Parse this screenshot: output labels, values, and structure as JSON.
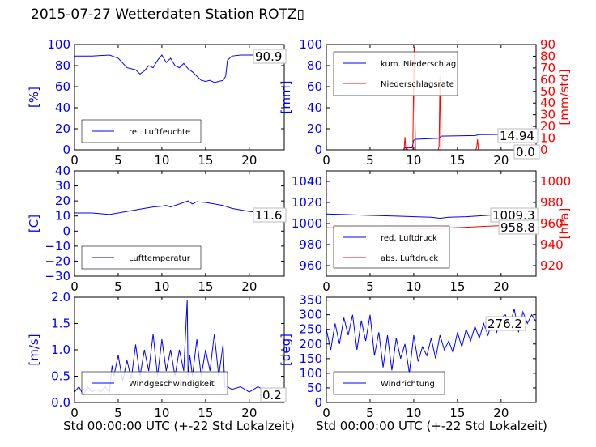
{
  "title": "2015-07-27 Wetterdaten Station ROTZ▯",
  "xlabel_left": "Std 00:00:00 UTC (+-22 Std Lokalzeit)",
  "xlabel_right": "Std 00:00:00 UTC (+-22 Std Lokalzeit)",
  "colors": {
    "primary": "#0000ff",
    "secondary": "#ff0000",
    "axis": "#000000"
  },
  "chart_data": [
    {
      "type": "line",
      "panel": "top-left",
      "xlim": [
        0,
        24
      ],
      "ylim": [
        0,
        100
      ],
      "xticks": [
        "0",
        "5",
        "10",
        "15",
        "20"
      ],
      "yticks": [
        "0",
        "20",
        "40",
        "60",
        "80",
        "100"
      ],
      "ylabel": "[%]",
      "legend_placement": "lower-left",
      "series": [
        {
          "name": "rel. Luftfeuchte",
          "color": "#0000ff",
          "x": [
            0,
            2,
            4,
            5,
            6,
            6.5,
            7,
            7.5,
            8,
            8.5,
            9,
            9.5,
            10,
            10.5,
            11,
            11.5,
            12,
            12.5,
            13,
            13.5,
            14,
            14.5,
            15,
            15.5,
            16,
            16.5,
            17,
            17.3,
            17.5,
            18,
            19,
            20,
            21,
            22,
            23,
            24
          ],
          "y": [
            89,
            89,
            90,
            87,
            78,
            77,
            76,
            72,
            75,
            80,
            78,
            85,
            90,
            83,
            87,
            80,
            78,
            82,
            77,
            74,
            70,
            66,
            65,
            66,
            64,
            65,
            66,
            70,
            85,
            89,
            90,
            90,
            90,
            91,
            90.5,
            90.9
          ]
        }
      ],
      "last_value": "90.9"
    },
    {
      "type": "line",
      "panel": "top-right",
      "xlim": [
        0,
        24
      ],
      "ylim": [
        0,
        100
      ],
      "y2lim": [
        0,
        90
      ],
      "xticks": [
        "0",
        "5",
        "10",
        "15",
        "20"
      ],
      "yticks": [
        "0",
        "20",
        "40",
        "60",
        "80",
        "100"
      ],
      "y2ticks": [
        "0",
        "10",
        "20",
        "30",
        "40",
        "50",
        "60",
        "70",
        "80",
        "90"
      ],
      "ylabel": "[mm]",
      "y2label": "[mm/std]",
      "legend_placement": "upper-left",
      "series": [
        {
          "name": "kum. Niederschlag",
          "color": "#0000ff",
          "axis": "left",
          "x": [
            0,
            8.8,
            9,
            9.8,
            10,
            10.2,
            12.9,
            13,
            13.1,
            17,
            17.3,
            17.5,
            24
          ],
          "y": [
            0,
            0,
            2,
            2,
            9,
            10,
            11,
            12,
            13,
            13.5,
            14,
            14.5,
            14.94
          ]
        },
        {
          "name": "Niederschlagsrate",
          "color": "#ff0000",
          "axis": "right",
          "x": [
            0,
            8.9,
            9.0,
            9.1,
            9.2,
            9.3,
            9.9,
            10.0,
            10.05,
            10.1,
            10.2,
            10.3,
            12.8,
            12.9,
            13.0,
            13.05,
            13.1,
            13.2,
            17.1,
            17.2,
            17.3,
            17.4,
            24
          ],
          "y": [
            0,
            0,
            11,
            0,
            2,
            0,
            0,
            72,
            88,
            48,
            0,
            0,
            0,
            3,
            63,
            36,
            0,
            0,
            0,
            2,
            9,
            0,
            0
          ]
        }
      ],
      "last_values": [
        "14.94",
        "0.0"
      ]
    },
    {
      "type": "line",
      "panel": "middle-left",
      "xlim": [
        0,
        24
      ],
      "ylim": [
        -30,
        40
      ],
      "xticks": [
        "0",
        "5",
        "10",
        "15",
        "20"
      ],
      "yticks": [
        "−30",
        "−20",
        "−10",
        "0",
        "10",
        "20",
        "30",
        "40"
      ],
      "ylabel": "[C]",
      "legend_placement": "lower-left",
      "series": [
        {
          "name": "Lufttemperatur",
          "color": "#0000ff",
          "x": [
            0,
            2,
            3,
            4,
            5,
            6,
            7,
            8,
            9,
            10,
            10.5,
            11,
            12,
            12.5,
            13,
            13.5,
            14,
            15,
            16,
            17,
            18,
            19,
            20,
            21,
            22,
            23,
            24
          ],
          "y": [
            12,
            12,
            11.5,
            11,
            12,
            13,
            14,
            15,
            16,
            16.5,
            17,
            16,
            18,
            19,
            20,
            18,
            19.5,
            19,
            18,
            17,
            15,
            14,
            13,
            12.5,
            12,
            11.8,
            11.6
          ]
        }
      ],
      "last_value": "11.6"
    },
    {
      "type": "line",
      "panel": "middle-right",
      "xlim": [
        0,
        24
      ],
      "ylim": [
        950,
        1050
      ],
      "y2lim": [
        910,
        1010
      ],
      "xticks": [
        "0",
        "5",
        "10",
        "15",
        "20"
      ],
      "yticks": [
        "960",
        "980",
        "1000",
        "1020",
        "1040"
      ],
      "y2ticks": [
        "920",
        "940",
        "960",
        "980",
        "1000"
      ],
      "ylabel": "",
      "y2label": "[hPa]",
      "legend_placement": "lower-left",
      "series": [
        {
          "name": "red. Luftdruck",
          "color": "#0000ff",
          "axis": "left",
          "x": [
            0,
            2,
            4,
            6,
            8,
            10,
            12,
            13,
            14,
            16,
            18,
            20,
            22,
            24
          ],
          "y": [
            1009,
            1008.5,
            1008,
            1007.5,
            1007,
            1006.5,
            1006,
            1005,
            1006,
            1006.5,
            1007.5,
            1008.5,
            1009,
            1009.3
          ]
        },
        {
          "name": "abs. Luftdruck",
          "color": "#ff0000",
          "axis": "right",
          "x": [
            0,
            2,
            4,
            6,
            8,
            10,
            12,
            13,
            14,
            16,
            18,
            20,
            22,
            24
          ],
          "y": [
            956,
            956,
            955.8,
            955.6,
            955.5,
            955.4,
            955.3,
            955.2,
            955.8,
            956.5,
            957.3,
            958,
            958.5,
            958.8
          ]
        }
      ],
      "last_values": [
        "1009.3",
        "958.8"
      ]
    },
    {
      "type": "line",
      "panel": "bottom-left",
      "xlim": [
        0,
        24
      ],
      "ylim": [
        0,
        2
      ],
      "xticks": [
        "0",
        "5",
        "10",
        "15",
        "20"
      ],
      "yticks": [
        "0.0",
        "0.5",
        "1.0",
        "1.5",
        "2.0"
      ],
      "ylabel": "[m/s]",
      "legend_placement": "lower-left",
      "series": [
        {
          "name": "Windgeschwindigkeit",
          "color": "#0000ff",
          "x": [
            0,
            0.5,
            1,
            1.5,
            2,
            2.5,
            3,
            3.5,
            4,
            4.3,
            4.5,
            5,
            5.5,
            6,
            6.5,
            7,
            7.5,
            8,
            8.5,
            9,
            9.5,
            10,
            10.5,
            11,
            11.5,
            12,
            12.5,
            12.9,
            13,
            13.2,
            13.5,
            14,
            14.5,
            15,
            15.5,
            16,
            16.5,
            17,
            17.2,
            17.5,
            18,
            19,
            20,
            21,
            22,
            23,
            24
          ],
          "y": [
            0.2,
            0.3,
            0.15,
            0.3,
            0.2,
            0.25,
            0.2,
            0.3,
            0.2,
            0.7,
            0.5,
            0.9,
            0.4,
            0.8,
            0.45,
            1.1,
            0.5,
            1.0,
            0.6,
            1.3,
            0.5,
            1.2,
            0.6,
            1.0,
            0.5,
            1.0,
            0.6,
            1.95,
            0.5,
            0.9,
            0.5,
            1.2,
            0.5,
            1.0,
            0.6,
            1.3,
            0.5,
            1.1,
            0.3,
            0.3,
            0.25,
            0.3,
            0.2,
            0.3,
            0.2,
            0.25,
            0.2
          ]
        }
      ],
      "last_value": "0.2"
    },
    {
      "type": "line",
      "panel": "bottom-right",
      "xlim": [
        0,
        24
      ],
      "ylim": [
        0,
        360
      ],
      "xticks": [
        "0",
        "5",
        "10",
        "15",
        "20"
      ],
      "yticks": [
        "0",
        "50",
        "100",
        "150",
        "200",
        "250",
        "300",
        "350"
      ],
      "ylabel": "[deg]",
      "legend_placement": "lower-left",
      "series": [
        {
          "name": "Windrichtung",
          "color": "#0000ff",
          "x": [
            0,
            0.5,
            1,
            1.5,
            2,
            2.5,
            3,
            3.5,
            4,
            4.5,
            5,
            5.5,
            6,
            6.5,
            7,
            7.5,
            8,
            8.5,
            9,
            9.5,
            10,
            10.5,
            11,
            11.5,
            12,
            12.5,
            13,
            13.5,
            14,
            14.5,
            15,
            15.5,
            16,
            16.5,
            17,
            17.5,
            18,
            18.5,
            19,
            19.5,
            20,
            20.5,
            21,
            21.5,
            22,
            22.5,
            23,
            23.5,
            24
          ],
          "y": [
            250,
            180,
            270,
            200,
            290,
            230,
            300,
            180,
            280,
            210,
            300,
            160,
            240,
            120,
            230,
            110,
            220,
            150,
            200,
            100,
            230,
            140,
            190,
            160,
            220,
            150,
            230,
            180,
            210,
            170,
            240,
            190,
            250,
            210,
            260,
            220,
            270,
            230,
            280,
            240,
            290,
            300,
            260,
            320,
            240,
            310,
            270,
            300,
            276
          ]
        }
      ],
      "last_value": "276.2"
    }
  ]
}
